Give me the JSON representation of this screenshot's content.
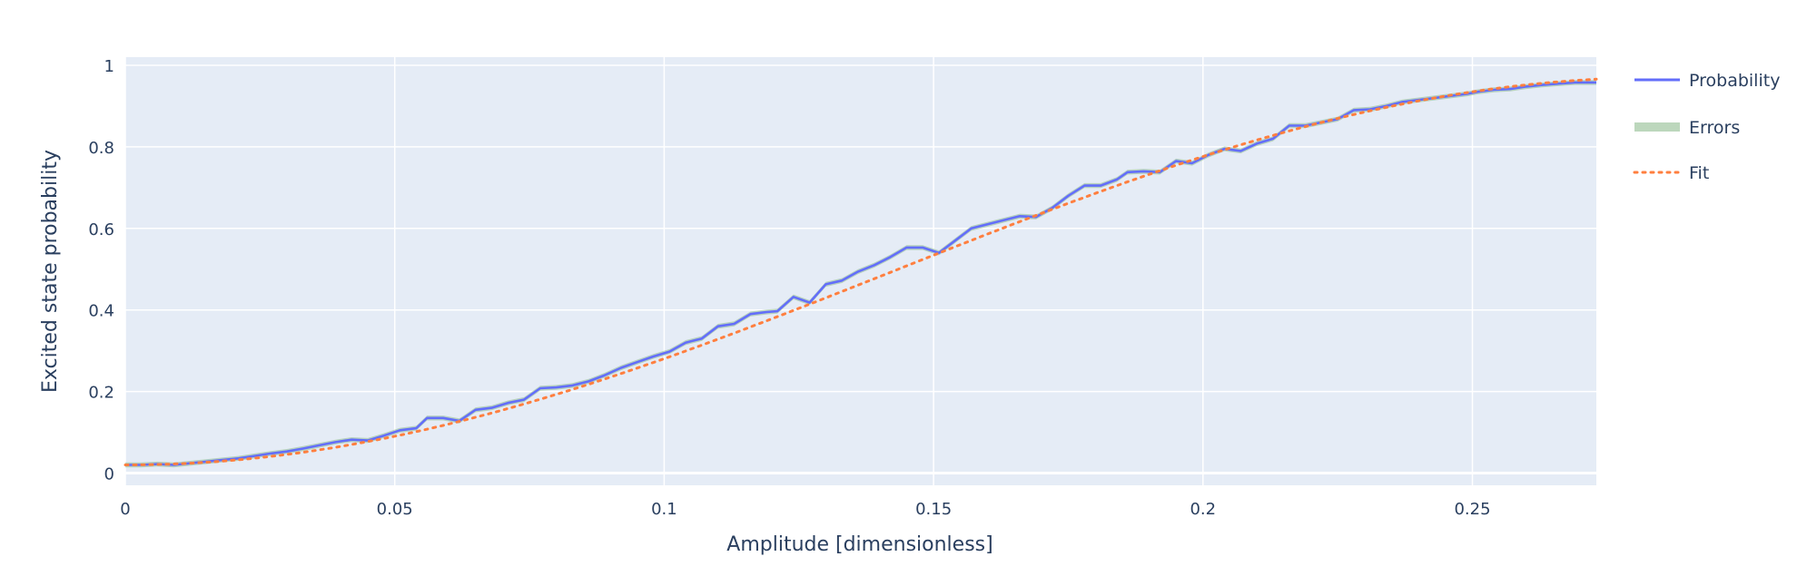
{
  "chart_data": {
    "type": "line",
    "title": "",
    "xlabel": "Amplitude [dimensionless]",
    "ylabel": "Excited state probability",
    "xlim": [
      0,
      0.273
    ],
    "ylim": [
      -0.03,
      1.02
    ],
    "xticks": [
      0,
      0.05,
      0.1,
      0.15,
      0.2,
      0.25
    ],
    "xtick_labels": [
      "0",
      "0.05",
      "0.1",
      "0.15",
      "0.2",
      "0.25"
    ],
    "yticks": [
      0,
      0.2,
      0.4,
      0.6,
      0.8,
      1
    ],
    "ytick_labels": [
      "0",
      "0.2",
      "0.4",
      "0.6",
      "0.8",
      "1"
    ],
    "grid": true,
    "legend_position": "top-right",
    "colors": {
      "plot_bg": "#e5ecf6",
      "grid": "#ffffff",
      "probability": "#636efa",
      "errors": "#8fbc8f",
      "fit": "#ff7f3f"
    },
    "x": [
      0,
      0.003,
      0.006,
      0.009,
      0.012,
      0.015,
      0.018,
      0.021,
      0.024,
      0.027,
      0.03,
      0.033,
      0.036,
      0.039,
      0.042,
      0.045,
      0.048,
      0.051,
      0.054,
      0.056,
      0.059,
      0.062,
      0.065,
      0.068,
      0.071,
      0.074,
      0.077,
      0.08,
      0.083,
      0.086,
      0.089,
      0.092,
      0.095,
      0.098,
      0.101,
      0.104,
      0.107,
      0.11,
      0.113,
      0.116,
      0.119,
      0.121,
      0.124,
      0.127,
      0.13,
      0.133,
      0.136,
      0.139,
      0.142,
      0.145,
      0.148,
      0.151,
      0.154,
      0.157,
      0.16,
      0.163,
      0.166,
      0.169,
      0.172,
      0.175,
      0.178,
      0.181,
      0.184,
      0.186,
      0.189,
      0.192,
      0.195,
      0.198,
      0.201,
      0.204,
      0.207,
      0.21,
      0.213,
      0.216,
      0.219,
      0.222,
      0.225,
      0.228,
      0.231,
      0.234,
      0.237,
      0.24,
      0.243,
      0.246,
      0.249,
      0.251,
      0.254,
      0.257,
      0.26,
      0.263,
      0.266,
      0.269,
      0.273
    ],
    "series": [
      {
        "name": "Probability",
        "style": "solid",
        "values": [
          0.02,
          0.02,
          0.022,
          0.02,
          0.024,
          0.028,
          0.032,
          0.036,
          0.042,
          0.048,
          0.053,
          0.06,
          0.068,
          0.076,
          0.082,
          0.08,
          0.092,
          0.105,
          0.11,
          0.135,
          0.135,
          0.128,
          0.155,
          0.16,
          0.172,
          0.18,
          0.208,
          0.21,
          0.215,
          0.225,
          0.24,
          0.258,
          0.272,
          0.286,
          0.298,
          0.32,
          0.33,
          0.36,
          0.366,
          0.39,
          0.395,
          0.397,
          0.432,
          0.418,
          0.463,
          0.472,
          0.494,
          0.51,
          0.53,
          0.553,
          0.553,
          0.54,
          0.57,
          0.6,
          0.61,
          0.62,
          0.63,
          0.628,
          0.65,
          0.68,
          0.705,
          0.705,
          0.72,
          0.738,
          0.74,
          0.738,
          0.765,
          0.76,
          0.78,
          0.795,
          0.79,
          0.808,
          0.82,
          0.852,
          0.852,
          0.86,
          0.868,
          0.89,
          0.892,
          0.9,
          0.91,
          0.915,
          0.92,
          0.925,
          0.93,
          0.935,
          0.94,
          0.942,
          0.948,
          0.952,
          0.955,
          0.958,
          0.958
        ]
      },
      {
        "name": "Errors",
        "style": "band",
        "half_width": 0.006
      },
      {
        "name": "Fit",
        "style": "dotted",
        "formula": "0.95*sin^2(pi*x/(2*0.285))+0.02"
      }
    ]
  }
}
